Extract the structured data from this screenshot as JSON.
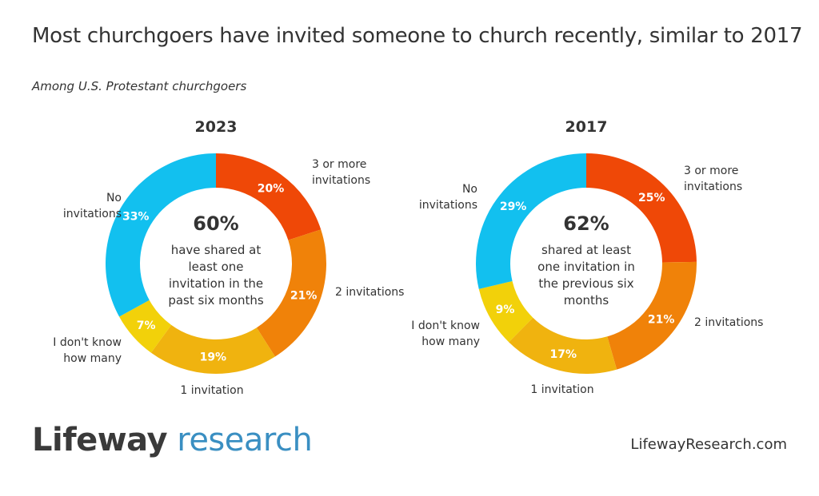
{
  "title": "Most churchgoers have invited someone to church recently, similar to 2017",
  "subtitle": "Among U.S. Protestant churchgoers",
  "colors": {
    "3 or more invitations": "#ef4807",
    "2 invitations": "#f08209",
    "1 invitation": "#f0b30f",
    "I don't know how many": "#f2d10a",
    "No invitations": "#12c0ef"
  },
  "chart_data": [
    {
      "type": "pie",
      "title": "2023",
      "center_value": "60%",
      "center_text": [
        "have shared at",
        "least one",
        "invitation in the",
        "past six months"
      ],
      "slices": [
        {
          "label": "3 or more invitations",
          "label_lines": [
            "3 or more",
            "invitations"
          ],
          "value": 20,
          "value_label": "20%"
        },
        {
          "label": "2 invitations",
          "label_lines": [
            "2 invitations"
          ],
          "value": 21,
          "value_label": "21%"
        },
        {
          "label": "1 invitation",
          "label_lines": [
            "1 invitation"
          ],
          "value": 19,
          "value_label": "19%"
        },
        {
          "label": "I don't know how many",
          "label_lines": [
            "I don't know",
            "how many"
          ],
          "value": 7,
          "value_label": "7%"
        },
        {
          "label": "No invitations",
          "label_lines": [
            "No",
            "invitations"
          ],
          "value": 33,
          "value_label": "33%"
        }
      ]
    },
    {
      "type": "pie",
      "title": "2017",
      "center_value": "62%",
      "center_text": [
        "shared at least",
        "one invitation in",
        "the previous six",
        "months"
      ],
      "slices": [
        {
          "label": "3 or more invitations",
          "label_lines": [
            "3 or more",
            "invitations"
          ],
          "value": 25,
          "value_label": "25%"
        },
        {
          "label": "2 invitations",
          "label_lines": [
            "2 invitations"
          ],
          "value": 21,
          "value_label": "21%"
        },
        {
          "label": "1 invitation",
          "label_lines": [
            "1 invitation"
          ],
          "value": 17,
          "value_label": "17%"
        },
        {
          "label": "I don't know how many",
          "label_lines": [
            "I don't know",
            "how many"
          ],
          "value": 9,
          "value_label": "9%"
        },
        {
          "label": "No invitations",
          "label_lines": [
            "No",
            "invitations"
          ],
          "value": 29,
          "value_label": "29%"
        }
      ]
    }
  ],
  "footer": {
    "logo_brand": "Lifeway",
    "logo_research": "research",
    "website": "LifewayResearch.com"
  }
}
